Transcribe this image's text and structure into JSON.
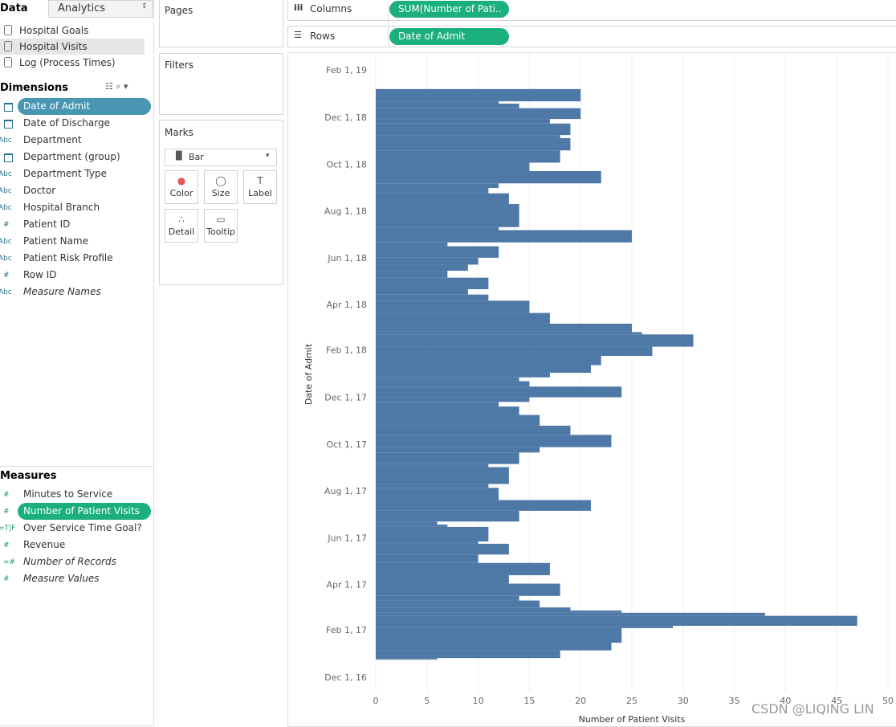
{
  "side_panel": {
    "tabs": [
      "Data",
      "Analytics"
    ],
    "data_sources": [
      "Hospital Goals",
      "Hospital Visits",
      "Log (Process Times)"
    ],
    "dimensions_header": "Dimensions",
    "dimensions": [
      {
        "name": "Date of Admit"
      },
      {
        "name": "Date of Discharge"
      },
      {
        "icon": "Abc",
        "name": "Department"
      },
      {
        "name": "Department (group)"
      },
      {
        "icon": "Abc",
        "name": "Department Type"
      },
      {
        "icon": "Abc",
        "name": "Doctor"
      },
      {
        "icon": "Abc",
        "name": "Hospital Branch"
      },
      {
        "icon": "#",
        "name": "Patient ID"
      },
      {
        "icon": "Abc",
        "name": "Patient Name"
      },
      {
        "icon": "Abc",
        "name": "Patient Risk Profile"
      },
      {
        "icon": "#",
        "name": "Row ID"
      },
      {
        "icon": "Abc",
        "name": "Measure Names"
      }
    ],
    "measures_header": "Measures",
    "measures": [
      {
        "icon": "#",
        "name": "Minutes to Service"
      },
      {
        "icon": "#",
        "name": "Number of Patient Visits"
      },
      {
        "icon": "=T|F",
        "name": "Over Service Time Goal?"
      },
      {
        "icon": "#",
        "name": "Revenue"
      },
      {
        "icon": "=#",
        "name": "Number of Records"
      },
      {
        "icon": "#",
        "name": "Measure Values"
      }
    ]
  },
  "cards": {
    "pages": "Pages",
    "filters": "Filters",
    "marks": "Marks",
    "mark_type": "Bar",
    "buttons": [
      "Color",
      "Size",
      "Label",
      "Detail",
      "Tooltip"
    ]
  },
  "shelves": {
    "columns": "Columns",
    "columns_pill": "SUM(Number of Pati..",
    "rows": "Rows",
    "rows_pill": "Date of Admit"
  },
  "watermark": "CSDN @LIQING LIN",
  "chart_data": {
    "type": "histogram",
    "orientation": "horizontal",
    "x_label": "Number of Patient Visits",
    "y_label": "Date of Admit",
    "color": "#4e79a7",
    "grid": true,
    "bins": [
      "2016-12-24",
      "2016-12-26",
      "2017-01-05",
      "2017-01-15",
      "2017-02-03",
      "2017-02-06",
      "2017-02-19",
      "2017-02-23",
      "2017-02-26",
      "2017-03-02",
      "2017-03-11",
      "2017-03-17",
      "2017-04-02",
      "2017-04-13",
      "2017-04-29",
      "2017-05-10",
      "2017-05-24",
      "2017-05-27",
      "2017-06-15",
      "2017-06-18",
      "2017-06-22",
      "2017-07-06",
      "2017-07-20",
      "2017-08-05",
      "2017-08-10",
      "2017-09-01",
      "2017-09-05",
      "2017-09-20",
      "2017-09-27",
      "2017-10-13",
      "2017-10-25",
      "2017-11-08",
      "2017-11-19",
      "2017-11-25",
      "2017-12-01",
      "2017-12-15",
      "2017-12-22",
      "2017-12-27",
      "2018-01-02",
      "2018-01-12",
      "2018-01-24",
      "2018-02-05",
      "2018-02-21",
      "2018-02-24",
      "2018-03-07",
      "2018-03-21",
      "2018-04-06",
      "2018-04-14",
      "2018-04-21",
      "2018-05-06",
      "2018-05-15",
      "2018-05-23",
      "2018-06-01",
      "2018-06-16",
      "2018-06-21",
      "2018-07-07",
      "2018-07-11",
      "2018-08-10",
      "2018-08-24",
      "2018-08-31",
      "2018-09-06",
      "2018-09-22",
      "2018-10-03",
      "2018-10-19",
      "2018-11-04",
      "2018-11-08",
      "2018-11-23",
      "2018-11-29",
      "2018-12-13",
      "2018-12-19",
      "2018-12-22",
      "2019-01-07"
    ],
    "values": [
      6,
      18,
      23,
      24,
      29,
      47,
      38,
      24,
      19,
      16,
      14,
      18,
      13,
      17,
      10,
      13,
      10,
      11,
      7,
      6,
      14,
      21,
      12,
      11,
      13,
      11,
      14,
      16,
      23,
      19,
      16,
      14,
      12,
      15,
      24,
      15,
      14,
      17,
      21,
      22,
      27,
      31,
      26,
      25,
      17,
      15,
      11,
      9,
      11,
      7,
      9,
      10,
      12,
      7,
      25,
      12,
      14,
      13,
      11,
      12,
      22,
      15,
      18,
      19,
      18,
      19,
      17,
      20,
      14,
      12,
      20
    ],
    "xlim": [
      0,
      50
    ],
    "xticks": [
      0,
      5,
      10,
      15,
      20,
      25,
      30,
      35,
      40,
      45,
      50
    ],
    "ylim": [
      "2016-11-11",
      "2019-02-19"
    ],
    "yticks": [
      {
        "value": "2016-12-01",
        "label": "Dec 1, 16"
      },
      {
        "value": "2017-02-01",
        "label": "Feb 1, 17"
      },
      {
        "value": "2017-04-01",
        "label": "Apr 1, 17"
      },
      {
        "value": "2017-06-01",
        "label": "Jun 1, 17"
      },
      {
        "value": "2017-08-01",
        "label": "Aug 1, 17"
      },
      {
        "value": "2017-10-01",
        "label": "Oct 1, 17"
      },
      {
        "value": "2017-12-01",
        "label": "Dec 1, 17"
      },
      {
        "value": "2018-02-01",
        "label": "Feb 1, 18"
      },
      {
        "value": "2018-04-01",
        "label": "Apr 1, 18"
      },
      {
        "value": "2018-06-01",
        "label": "Jun 1, 18"
      },
      {
        "value": "2018-08-01",
        "label": "Aug 1, 18"
      },
      {
        "value": "2018-10-01",
        "label": "Oct 1, 18"
      },
      {
        "value": "2018-12-01",
        "label": "Dec 1, 18"
      },
      {
        "value": "2019-02-01",
        "label": "Feb 1, 19"
      }
    ]
  }
}
